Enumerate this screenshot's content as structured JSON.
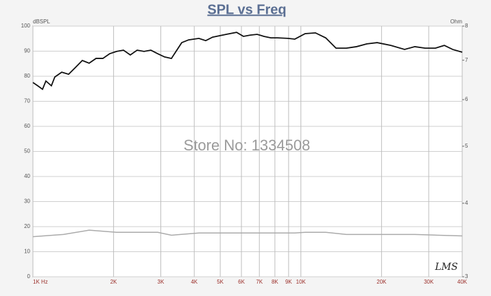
{
  "chart_data": {
    "type": "line",
    "title": "SPL vs Freq",
    "y_label": "dBSPL",
    "y2_label": "Ohm",
    "annotations": [
      "Store No: 1334508",
      "LMS"
    ],
    "x_scale": "log",
    "y2_scale": "log",
    "grid": true,
    "xlim": [
      1000,
      40000
    ],
    "xticks": [
      {
        "value": 1000,
        "label": "1K  Hz"
      },
      {
        "value": 2000,
        "label": "2K"
      },
      {
        "value": 3000,
        "label": "3K"
      },
      {
        "value": 4000,
        "label": "4K"
      },
      {
        "value": 5000,
        "label": "5K"
      },
      {
        "value": 6000,
        "label": "6K"
      },
      {
        "value": 7000,
        "label": "7K"
      },
      {
        "value": 8000,
        "label": "8K"
      },
      {
        "value": 9000,
        "label": "9K"
      },
      {
        "value": 10000,
        "label": "10K"
      },
      {
        "value": 20000,
        "label": "20K"
      },
      {
        "value": 30000,
        "label": "30K"
      },
      {
        "value": 40000,
        "label": "40K"
      }
    ],
    "ylim": [
      0,
      100
    ],
    "yticks": [
      0,
      10,
      20,
      30,
      40,
      50,
      60,
      70,
      80,
      90,
      100
    ],
    "y2lim": [
      3,
      8
    ],
    "y2ticks": [
      3,
      4,
      5,
      6,
      7,
      8
    ],
    "series": [
      {
        "color": "#111111",
        "x": [
          1000,
          1042,
          1086,
          1118,
          1172,
          1207,
          1281,
          1359,
          1441,
          1529,
          1621,
          1720,
          1824,
          1935,
          2052,
          2177,
          2309,
          2449,
          2598,
          2755,
          2922,
          3100,
          3288,
          3592,
          3810,
          4163,
          4415,
          4683,
          5268,
          5754,
          6104,
          6474,
          6867,
          7284,
          7727,
          8195,
          8953,
          9495,
          10373,
          11332,
          12380,
          13524,
          14775,
          16136,
          17630,
          19260,
          21670,
          24380,
          26630,
          29090,
          31780,
          34300,
          36830,
          40000
        ],
        "values": [
          77.5,
          76.2,
          74.8,
          78.1,
          76.2,
          79.7,
          81.6,
          80.8,
          83.5,
          86.3,
          85.2,
          87.1,
          87.1,
          89,
          89.9,
          90.4,
          88.5,
          90.4,
          89.9,
          90.4,
          89,
          87.7,
          87.1,
          93.4,
          94.5,
          95.1,
          94.2,
          95.6,
          96.7,
          97.5,
          95.9,
          96.4,
          96.7,
          95.9,
          95.3,
          95.3,
          95.1,
          94.8,
          97,
          97.3,
          95.3,
          91.2,
          91.2,
          91.8,
          92.9,
          93.4,
          92.3,
          90.7,
          91.8,
          91.2,
          91.2,
          92.3,
          90.7,
          89.6
        ]
      },
      {
        "color": "#aaaaaa",
        "axis": "y2",
        "x": [
          1000,
          1300,
          1621,
          2052,
          2922,
          3288,
          4163,
          6000,
          9495,
          10373,
          12380,
          14775,
          26630,
          40000
        ],
        "values": [
          3.51,
          3.54,
          3.6,
          3.57,
          3.57,
          3.53,
          3.56,
          3.56,
          3.56,
          3.57,
          3.57,
          3.54,
          3.54,
          3.52
        ]
      }
    ]
  }
}
